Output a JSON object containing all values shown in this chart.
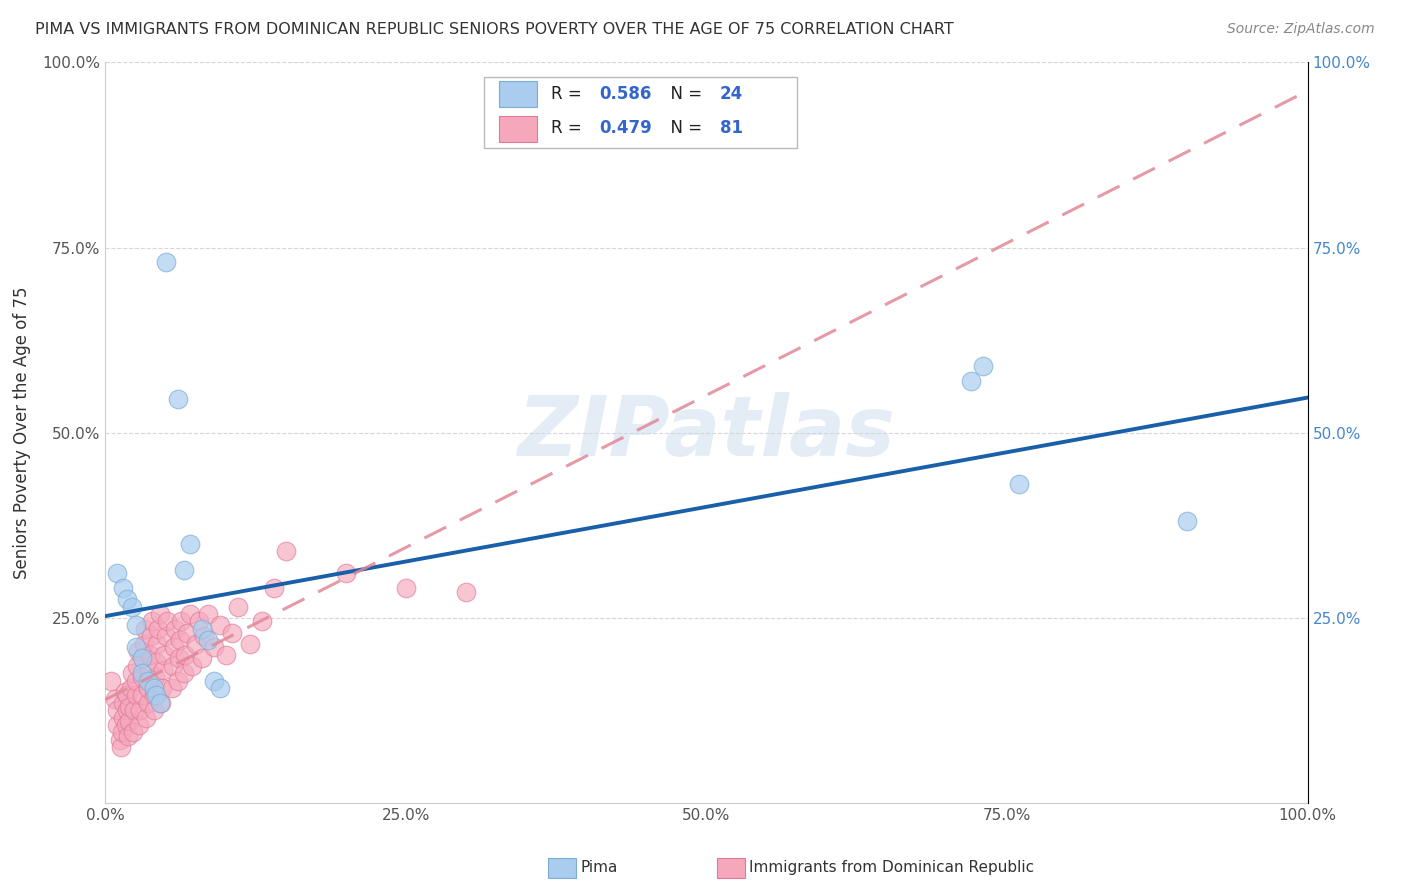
{
  "title": "PIMA VS IMMIGRANTS FROM DOMINICAN REPUBLIC SENIORS POVERTY OVER THE AGE OF 75 CORRELATION CHART",
  "source": "Source: ZipAtlas.com",
  "ylabel": "Seniors Poverty Over the Age of 75",
  "xlim": [
    0,
    1.0
  ],
  "ylim": [
    0,
    1.0
  ],
  "xticks": [
    0.0,
    0.25,
    0.5,
    0.75,
    1.0
  ],
  "xtick_labels": [
    "0.0%",
    "25.0%",
    "50.0%",
    "75.0%",
    "100.0%"
  ],
  "yticks": [
    0.25,
    0.5,
    0.75,
    1.0
  ],
  "ytick_labels": [
    "25.0%",
    "50.0%",
    "75.0%",
    "100.0%"
  ],
  "pima_color": "#aaccee",
  "pima_edge_color": "#7aadd4",
  "dr_color": "#f5a8bc",
  "dr_edge_color": "#e07898",
  "pima_label": "Pima",
  "dr_label": "Immigrants from Dominican Republic",
  "pima_R": 0.586,
  "pima_N": 24,
  "dr_R": 0.479,
  "dr_N": 81,
  "line_blue": "#1a5faa",
  "line_pink": "#e08898",
  "watermark": "ZIPatlas",
  "background_color": "#ffffff",
  "grid_color": "#cccccc",
  "pima_scatter": [
    [
      0.01,
      0.31
    ],
    [
      0.015,
      0.29
    ],
    [
      0.018,
      0.275
    ],
    [
      0.022,
      0.265
    ],
    [
      0.025,
      0.24
    ],
    [
      0.025,
      0.21
    ],
    [
      0.03,
      0.195
    ],
    [
      0.03,
      0.175
    ],
    [
      0.035,
      0.165
    ],
    [
      0.04,
      0.155
    ],
    [
      0.042,
      0.145
    ],
    [
      0.045,
      0.135
    ],
    [
      0.05,
      0.73
    ],
    [
      0.06,
      0.545
    ],
    [
      0.065,
      0.315
    ],
    [
      0.07,
      0.35
    ],
    [
      0.08,
      0.235
    ],
    [
      0.085,
      0.22
    ],
    [
      0.09,
      0.165
    ],
    [
      0.095,
      0.155
    ],
    [
      0.72,
      0.57
    ],
    [
      0.73,
      0.59
    ],
    [
      0.76,
      0.43
    ],
    [
      0.9,
      0.38
    ]
  ],
  "dr_scatter": [
    [
      0.005,
      0.165
    ],
    [
      0.008,
      0.14
    ],
    [
      0.01,
      0.105
    ],
    [
      0.01,
      0.125
    ],
    [
      0.012,
      0.085
    ],
    [
      0.013,
      0.075
    ],
    [
      0.014,
      0.095
    ],
    [
      0.015,
      0.115
    ],
    [
      0.015,
      0.135
    ],
    [
      0.016,
      0.15
    ],
    [
      0.017,
      0.105
    ],
    [
      0.018,
      0.125
    ],
    [
      0.018,
      0.145
    ],
    [
      0.019,
      0.09
    ],
    [
      0.02,
      0.11
    ],
    [
      0.02,
      0.13
    ],
    [
      0.021,
      0.155
    ],
    [
      0.022,
      0.175
    ],
    [
      0.023,
      0.095
    ],
    [
      0.024,
      0.125
    ],
    [
      0.025,
      0.145
    ],
    [
      0.025,
      0.165
    ],
    [
      0.026,
      0.185
    ],
    [
      0.027,
      0.205
    ],
    [
      0.028,
      0.105
    ],
    [
      0.029,
      0.125
    ],
    [
      0.03,
      0.145
    ],
    [
      0.03,
      0.17
    ],
    [
      0.031,
      0.195
    ],
    [
      0.032,
      0.215
    ],
    [
      0.033,
      0.235
    ],
    [
      0.034,
      0.115
    ],
    [
      0.035,
      0.135
    ],
    [
      0.035,
      0.155
    ],
    [
      0.036,
      0.18
    ],
    [
      0.037,
      0.2
    ],
    [
      0.038,
      0.225
    ],
    [
      0.039,
      0.245
    ],
    [
      0.04,
      0.125
    ],
    [
      0.04,
      0.145
    ],
    [
      0.041,
      0.17
    ],
    [
      0.042,
      0.19
    ],
    [
      0.043,
      0.215
    ],
    [
      0.044,
      0.235
    ],
    [
      0.045,
      0.255
    ],
    [
      0.046,
      0.135
    ],
    [
      0.047,
      0.155
    ],
    [
      0.048,
      0.18
    ],
    [
      0.049,
      0.2
    ],
    [
      0.05,
      0.225
    ],
    [
      0.051,
      0.245
    ],
    [
      0.055,
      0.155
    ],
    [
      0.056,
      0.185
    ],
    [
      0.057,
      0.21
    ],
    [
      0.058,
      0.235
    ],
    [
      0.06,
      0.165
    ],
    [
      0.061,
      0.195
    ],
    [
      0.062,
      0.22
    ],
    [
      0.063,
      0.245
    ],
    [
      0.065,
      0.175
    ],
    [
      0.066,
      0.2
    ],
    [
      0.068,
      0.23
    ],
    [
      0.07,
      0.255
    ],
    [
      0.072,
      0.185
    ],
    [
      0.075,
      0.215
    ],
    [
      0.078,
      0.245
    ],
    [
      0.08,
      0.195
    ],
    [
      0.082,
      0.225
    ],
    [
      0.085,
      0.255
    ],
    [
      0.09,
      0.21
    ],
    [
      0.095,
      0.24
    ],
    [
      0.1,
      0.2
    ],
    [
      0.105,
      0.23
    ],
    [
      0.11,
      0.265
    ],
    [
      0.12,
      0.215
    ],
    [
      0.13,
      0.245
    ],
    [
      0.14,
      0.29
    ],
    [
      0.15,
      0.34
    ],
    [
      0.2,
      0.31
    ],
    [
      0.25,
      0.29
    ],
    [
      0.3,
      0.285
    ]
  ]
}
